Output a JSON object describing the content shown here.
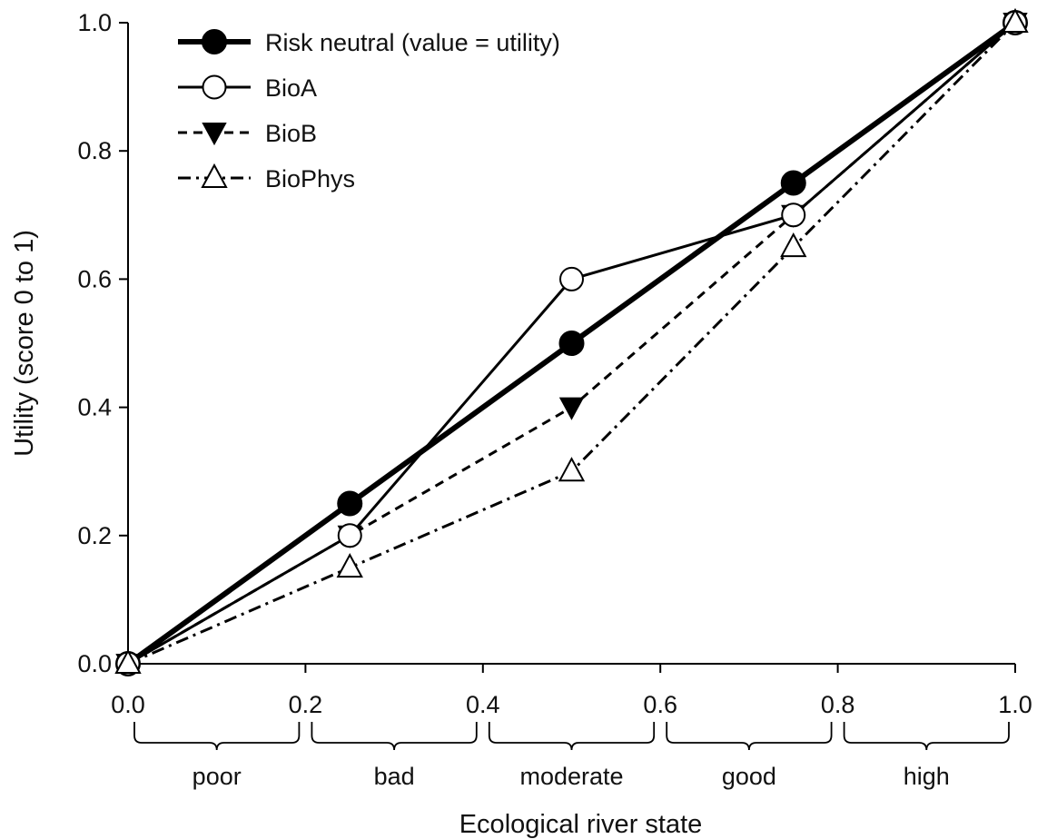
{
  "chart_data": {
    "type": "line",
    "title": "",
    "xlabel": "Ecological river state",
    "ylabel": "Utility (score 0 to 1)",
    "xlim": [
      0.0,
      1.0
    ],
    "ylim": [
      0.0,
      1.0
    ],
    "xticks": [
      "0.0",
      "0.2",
      "0.4",
      "0.6",
      "0.8",
      "1.0"
    ],
    "yticks": [
      "0.0",
      "0.2",
      "0.4",
      "0.6",
      "0.8",
      "1.0"
    ],
    "grid": false,
    "legend_position": "top-left",
    "categories": [
      {
        "label": "poor",
        "range": [
          0.0,
          0.2
        ]
      },
      {
        "label": "bad",
        "range": [
          0.2,
          0.4
        ]
      },
      {
        "label": "moderate",
        "range": [
          0.4,
          0.6
        ]
      },
      {
        "label": "good",
        "range": [
          0.6,
          0.8
        ]
      },
      {
        "label": "high",
        "range": [
          0.8,
          1.0
        ]
      }
    ],
    "x": [
      0.0,
      0.25,
      0.5,
      0.75,
      1.0
    ],
    "series": [
      {
        "name": "Risk neutral (value = utility)",
        "values": [
          0.0,
          0.25,
          0.5,
          0.75,
          1.0
        ],
        "marker": "filled-circle",
        "line": "solid-thick",
        "color": "#000000"
      },
      {
        "name": "BioA",
        "values": [
          0.0,
          0.2,
          0.6,
          0.7,
          1.0
        ],
        "marker": "open-circle",
        "line": "solid",
        "color": "#000000"
      },
      {
        "name": "BioB",
        "values": [
          0.0,
          0.2,
          0.4,
          0.7,
          1.0
        ],
        "marker": "filled-triangle-down",
        "line": "dashed",
        "color": "#000000"
      },
      {
        "name": "BioPhys",
        "values": [
          0.0,
          0.15,
          0.3,
          0.65,
          1.0
        ],
        "marker": "open-triangle-up",
        "line": "dash-dot",
        "color": "#000000"
      }
    ]
  }
}
